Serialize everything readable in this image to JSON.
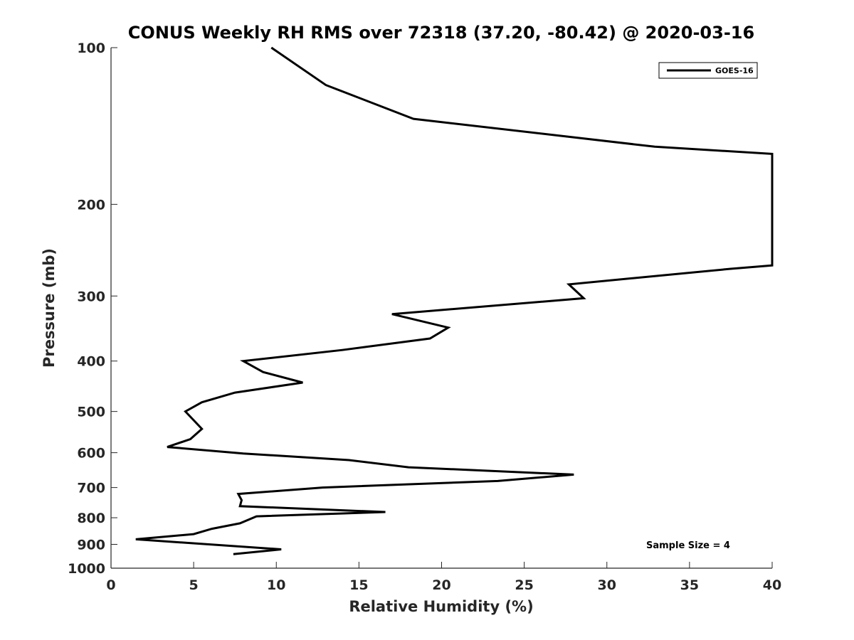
{
  "chart_data": {
    "type": "line",
    "title": "CONUS Weekly RH RMS over 72318 (37.20, -80.42) @ 2020-03-16",
    "xlabel": "Relative Humidity (%)",
    "ylabel": "Pressure (mb)",
    "xlim": [
      0,
      40
    ],
    "ylim": [
      100,
      1000
    ],
    "y_scale": "log",
    "y_reversed": true,
    "x_ticks": [
      0,
      5,
      10,
      15,
      20,
      25,
      30,
      35,
      40
    ],
    "x_tick_labels": [
      "0",
      "5",
      "10",
      "15",
      "20",
      "25",
      "30",
      "35",
      "40"
    ],
    "y_ticks": [
      100,
      200,
      300,
      400,
      500,
      600,
      700,
      800,
      900,
      1000
    ],
    "y_tick_labels": [
      "100",
      "200",
      "300",
      "400",
      "500",
      "600",
      "700",
      "800",
      "900",
      "1000"
    ],
    "grid": false,
    "legend_position": "top-right",
    "annotation": "Sample Size = 4",
    "line_color": "#000000",
    "series": [
      {
        "name": "GOES-16",
        "x": [
          9.7,
          13.0,
          18.3,
          32.9,
          40.0,
          40.0,
          37.5,
          27.7,
          28.6,
          17.0,
          20.4,
          19.3,
          14.0,
          8.0,
          9.2,
          11.6,
          7.5,
          5.5,
          4.5,
          5.5,
          4.8,
          3.4,
          8.0,
          14.4,
          18.0,
          28.0,
          23.4,
          12.8,
          7.7,
          7.9,
          7.8,
          16.6,
          8.8,
          7.8,
          6.1,
          5.0,
          1.5,
          10.3,
          7.4
        ],
        "y": [
          100,
          118,
          137,
          155,
          160,
          262,
          266,
          285,
          303,
          325,
          345,
          362,
          381,
          400,
          420,
          440,
          460,
          480,
          500,
          540,
          565,
          585,
          602,
          620,
          640,
          661,
          680,
          700,
          720,
          740,
          760,
          780,
          795,
          820,
          840,
          860,
          880,
          920,
          940
        ]
      }
    ]
  }
}
